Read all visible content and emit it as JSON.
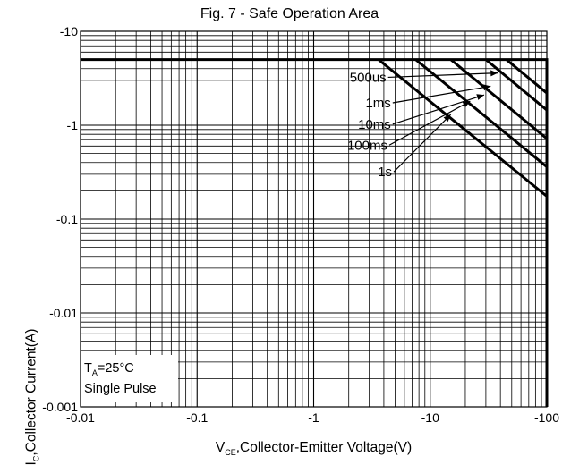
{
  "chart_data": {
    "type": "line",
    "title": "Fig. 7 - Safe Operation Area",
    "xlabel": {
      "symbol": "V",
      "sub": "CE",
      "text": ",Collector-Emitter Voltage(V)"
    },
    "ylabel": {
      "symbol": "I",
      "sub": "C",
      "text": ",Collector Current(A)"
    },
    "x_scale": "log",
    "y_scale": "log",
    "xlim": [
      0.01,
      100
    ],
    "ylim": [
      0.001,
      10
    ],
    "x_tick_labels": [
      "-0.01",
      "-0.1",
      "-1",
      "-10",
      "-100"
    ],
    "y_tick_labels": [
      "-10",
      "-1",
      "-0.1",
      "-0.01",
      "-0.001"
    ],
    "grid": true,
    "boundary": {
      "x": [
        0.01,
        100,
        100
      ],
      "y": [
        5,
        5,
        0.001
      ]
    },
    "series": [
      {
        "name": "500us",
        "x": [
          45,
          100
        ],
        "y": [
          5,
          2.2
        ]
      },
      {
        "name": "1ms",
        "x": [
          30,
          100
        ],
        "y": [
          5,
          1.45
        ]
      },
      {
        "name": "10ms",
        "x": [
          15,
          100
        ],
        "y": [
          5,
          0.72
        ]
      },
      {
        "name": "100ms",
        "x": [
          7.5,
          100
        ],
        "y": [
          5,
          0.36
        ]
      },
      {
        "name": "1s",
        "x": [
          3.6,
          100
        ],
        "y": [
          5,
          0.175
        ]
      }
    ],
    "annotations": [
      {
        "text": "500us",
        "x": 4.2,
        "y": 2.9,
        "arrow_to": [
          38,
          3.6
        ]
      },
      {
        "text": "1ms",
        "x": 4.6,
        "y": 1.55,
        "arrow_to": [
          33,
          2.6
        ]
      },
      {
        "text": "10ms",
        "x": 4.6,
        "y": 0.92,
        "arrow_to": [
          29,
          2.1
        ]
      },
      {
        "text": "100ms",
        "x": 4.3,
        "y": 0.55,
        "arrow_to": [
          22,
          1.8
        ]
      },
      {
        "text": "1s",
        "x": 4.7,
        "y": 0.285,
        "arrow_to": [
          15,
          1.3
        ]
      }
    ],
    "legend_text": {
      "line1_symbol": "T",
      "line1_sub": "A",
      "line1_rest": "=25°C",
      "line2": "Single Pulse"
    },
    "legend_placement": "bottom-left"
  }
}
